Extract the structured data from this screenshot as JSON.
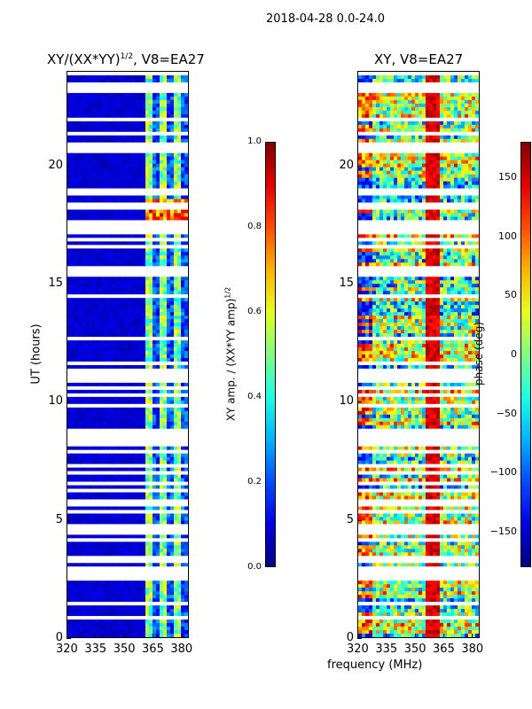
{
  "page_title": "2018-04-28 0.0-24.0",
  "chart_data": [
    {
      "type": "heatmap",
      "title": "XY/(XX*YY)^{1/2}, V8=EA27",
      "title_main": "XY/(XX*YY)",
      "title_sup": "1/2",
      "title_tail": ", V8=EA27",
      "xlabel": "",
      "ylabel": "UT (hours)",
      "xlim": [
        320,
        384
      ],
      "ylim": [
        0,
        24
      ],
      "xticks": [
        320,
        335,
        350,
        365,
        380
      ],
      "yticks": [
        0,
        5,
        10,
        15,
        20
      ],
      "colorbar": {
        "label": "XY amp. / (XX*YY amp)^{1/2}",
        "label_main": "XY amp. / (XX*YY amp)",
        "label_sup": "1/2",
        "range": [
          0.0,
          1.0
        ],
        "ticks": [
          "0.0",
          "0.2",
          "0.4",
          "0.6",
          "0.8",
          "1.0"
        ],
        "colormap": "jet"
      }
    },
    {
      "type": "heatmap",
      "title": "XY, V8=EA27",
      "xlabel": "frequency (MHz)",
      "ylabel": "",
      "xlim": [
        320,
        384
      ],
      "ylim": [
        0,
        24
      ],
      "xticks": [
        320,
        335,
        350,
        365,
        380
      ],
      "yticks": [
        0,
        5,
        10,
        15,
        20
      ],
      "colorbar": {
        "label": "phase (deg)",
        "range": [
          -180,
          180
        ],
        "ticks": [
          "−150",
          "−100",
          "−50",
          "0",
          "50",
          "100",
          "150"
        ],
        "colormap": "jet"
      }
    }
  ]
}
